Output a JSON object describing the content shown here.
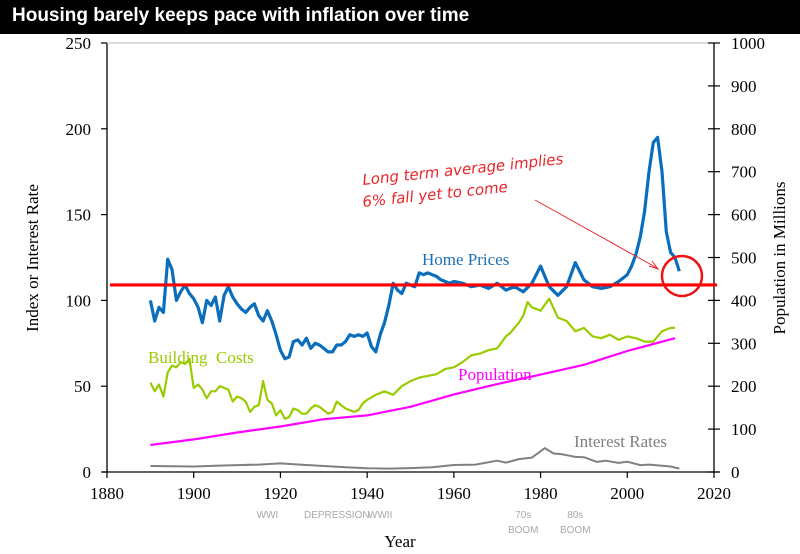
{
  "header": {
    "title": "Housing barely keeps pace with inflation over time"
  },
  "chart_data": {
    "type": "line",
    "title": "Housing barely keeps pace with inflation over time",
    "xlabel": "Year",
    "ylabel": "Index or Interest Rate",
    "y2label": "Population in Millions",
    "xlim": [
      1880,
      2020
    ],
    "ylim": [
      0,
      250
    ],
    "y2lim": [
      0,
      1000
    ],
    "x_ticks": [
      1880,
      1900,
      1920,
      1940,
      1960,
      1980,
      2000,
      2020
    ],
    "y_ticks": [
      0,
      50,
      100,
      150,
      200,
      250
    ],
    "y2_ticks": [
      0,
      100,
      200,
      300,
      400,
      500,
      600,
      700,
      800,
      900,
      1000
    ],
    "grid": false,
    "reference_line": {
      "label": "Long term average",
      "value": 109,
      "color": "#ff0000"
    },
    "series": [
      {
        "name": "Home Prices",
        "axis": "left",
        "color": "#0a6ebd",
        "x": [
          1890,
          1891,
          1892,
          1893,
          1894,
          1895,
          1896,
          1897,
          1898,
          1899,
          1900,
          1901,
          1902,
          1903,
          1904,
          1905,
          1906,
          1907,
          1908,
          1909,
          1910,
          1911,
          1912,
          1913,
          1914,
          1915,
          1916,
          1917,
          1918,
          1919,
          1920,
          1921,
          1922,
          1923,
          1924,
          1925,
          1926,
          1927,
          1928,
          1929,
          1930,
          1931,
          1932,
          1933,
          1934,
          1935,
          1936,
          1937,
          1938,
          1939,
          1940,
          1941,
          1942,
          1943,
          1944,
          1945,
          1946,
          1947,
          1948,
          1949,
          1950,
          1951,
          1952,
          1953,
          1954,
          1955,
          1956,
          1957,
          1958,
          1959,
          1960,
          1962,
          1964,
          1966,
          1968,
          1970,
          1972,
          1974,
          1976,
          1978,
          1980,
          1982,
          1984,
          1986,
          1988,
          1990,
          1992,
          1994,
          1996,
          1998,
          2000,
          2001,
          2002,
          2003,
          2004,
          2005,
          2006,
          2007,
          2008,
          2009,
          2010,
          2011,
          2012
        ],
        "values": [
          100,
          88,
          96,
          93,
          124,
          118,
          100,
          105,
          109,
          104,
          101,
          96,
          87,
          100,
          97,
          102,
          88,
          103,
          108,
          102,
          98,
          95,
          93,
          96,
          98,
          91,
          88,
          94,
          88,
          80,
          71,
          66,
          67,
          76,
          77,
          74,
          78,
          72,
          75,
          74,
          72,
          70,
          70,
          74,
          74,
          76,
          80,
          79,
          80,
          79,
          81,
          73,
          70,
          80,
          87,
          97,
          110,
          106,
          104,
          110,
          109,
          108,
          116,
          115,
          116,
          115,
          114,
          112,
          111,
          110,
          111,
          110,
          108,
          109,
          107,
          110,
          106,
          108,
          105,
          110,
          120,
          108,
          103,
          108,
          122,
          112,
          108,
          107,
          108,
          111,
          115,
          120,
          127,
          137,
          152,
          175,
          192,
          195,
          175,
          140,
          128,
          125,
          117
        ]
      },
      {
        "name": "Building Costs",
        "axis": "left",
        "color": "#99cc00",
        "x": [
          1890,
          1891,
          1892,
          1893,
          1894,
          1895,
          1896,
          1897,
          1898,
          1899,
          1900,
          1901,
          1902,
          1903,
          1904,
          1905,
          1906,
          1907,
          1908,
          1909,
          1910,
          1911,
          1912,
          1913,
          1914,
          1915,
          1916,
          1917,
          1918,
          1919,
          1920,
          1921,
          1922,
          1923,
          1924,
          1925,
          1926,
          1927,
          1928,
          1929,
          1930,
          1931,
          1932,
          1933,
          1934,
          1935,
          1936,
          1937,
          1938,
          1939,
          1940,
          1942,
          1944,
          1946,
          1948,
          1950,
          1952,
          1954,
          1956,
          1958,
          1960,
          1962,
          1964,
          1966,
          1968,
          1970,
          1972,
          1973,
          1975,
          1976,
          1977,
          1978,
          1980,
          1982,
          1984,
          1986,
          1988,
          1990,
          1992,
          1994,
          1996,
          1998,
          2000,
          2002,
          2004,
          2006,
          2008,
          2010,
          2011
        ],
        "values": [
          52,
          47,
          51,
          44,
          58,
          62,
          61,
          64,
          63,
          66,
          49,
          51,
          48,
          43,
          47,
          47,
          50,
          49,
          48,
          41,
          44,
          43,
          41,
          35,
          38,
          39,
          53,
          42,
          40,
          33,
          36,
          31,
          32,
          37,
          36,
          34,
          34,
          37,
          39,
          38,
          36,
          34,
          35,
          41,
          39,
          37,
          36,
          35,
          36,
          40,
          42,
          45,
          47,
          45,
          50,
          53,
          55,
          56,
          57,
          60,
          61,
          64,
          68,
          69,
          71,
          72,
          79,
          81,
          87,
          91,
          99,
          96,
          94,
          101,
          90,
          88,
          82,
          84,
          79,
          78,
          80,
          77,
          79,
          78,
          76,
          76,
          82,
          84,
          84
        ]
      },
      {
        "name": "Population",
        "axis": "right",
        "color": "#ff00ff",
        "x": [
          1890,
          1900,
          1910,
          1920,
          1930,
          1940,
          1950,
          1960,
          1970,
          1980,
          1990,
          2000,
          2011
        ],
        "values": [
          63,
          76,
          92,
          106,
          123,
          132,
          152,
          181,
          205,
          227,
          250,
          282,
          312
        ]
      },
      {
        "name": "Interest Rates",
        "axis": "left",
        "color": "#808080",
        "x": [
          1890,
          1895,
          1900,
          1905,
          1910,
          1915,
          1920,
          1925,
          1930,
          1935,
          1940,
          1945,
          1950,
          1955,
          1960,
          1965,
          1970,
          1972,
          1975,
          1978,
          1981,
          1983,
          1985,
          1988,
          1990,
          1993,
          1995,
          1998,
          2000,
          2003,
          2005,
          2008,
          2010,
          2012
        ],
        "values": [
          3.5,
          3.3,
          3.2,
          3.6,
          4.0,
          4.3,
          5.0,
          4.2,
          3.5,
          2.8,
          2.2,
          2.0,
          2.3,
          2.8,
          4.1,
          4.3,
          6.6,
          5.5,
          7.5,
          8.4,
          13.9,
          10.8,
          10.3,
          8.8,
          8.6,
          5.9,
          6.6,
          5.3,
          6.0,
          4.0,
          4.3,
          3.7,
          3.2,
          2.0
        ]
      }
    ],
    "annotations": [
      {
        "text_line1": "Long term average implies",
        "text_line2": "6% fall yet to come",
        "color": "#e8262a",
        "target_year": 2011,
        "target_value": 113
      }
    ],
    "era_labels": [
      {
        "lines": [
          "WWI"
        ],
        "year": 1917
      },
      {
        "lines": [
          "DEPRESSION"
        ],
        "year": 1933
      },
      {
        "lines": [
          "WWII"
        ],
        "year": 1943
      },
      {
        "lines": [
          "70s",
          "BOOM"
        ],
        "year": 1976
      },
      {
        "lines": [
          "80s",
          "BOOM"
        ],
        "year": 1988
      }
    ],
    "series_labels": {
      "home_prices": "Home Prices",
      "building_costs": "Building  Costs",
      "population": "Population",
      "interest_rates": "Interest Rates"
    }
  }
}
